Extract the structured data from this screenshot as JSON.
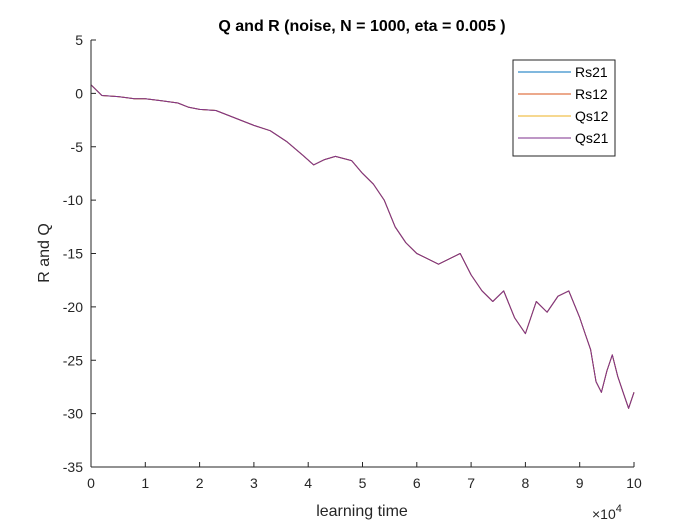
{
  "chart_data": {
    "type": "line",
    "title": "Q and R (noise, N = 1000, eta = 0.005 )",
    "xlabel": "learning time",
    "ylabel": "R and Q",
    "x_exponent_label": "×10",
    "x_exponent_power": "4",
    "xlim": [
      0,
      10
    ],
    "ylim": [
      -35,
      5
    ],
    "x_ticks": [
      0,
      1,
      2,
      3,
      4,
      5,
      6,
      7,
      8,
      9,
      10
    ],
    "x_tick_labels": [
      "0",
      "1",
      "2",
      "3",
      "4",
      "5",
      "6",
      "7",
      "8",
      "9",
      "10"
    ],
    "y_ticks": [
      5,
      0,
      -5,
      -10,
      -15,
      -20,
      -25,
      -30,
      -35
    ],
    "y_tick_labels": [
      "5",
      "0",
      "-5",
      "-10",
      "-15",
      "-20",
      "-25",
      "-30",
      "-35"
    ],
    "grid": false,
    "legend_position": "top-right",
    "x": [
      0,
      0.2,
      0.5,
      0.8,
      1.0,
      1.3,
      1.6,
      1.8,
      2.0,
      2.3,
      2.6,
      2.8,
      3.0,
      3.3,
      3.6,
      3.9,
      4.1,
      4.3,
      4.5,
      4.8,
      5.0,
      5.2,
      5.4,
      5.6,
      5.8,
      6.0,
      6.2,
      6.4,
      6.6,
      6.8,
      7.0,
      7.2,
      7.4,
      7.6,
      7.8,
      8.0,
      8.2,
      8.4,
      8.6,
      8.8,
      9.0,
      9.1,
      9.2,
      9.3,
      9.4,
      9.5,
      9.6,
      9.7,
      9.8,
      9.9,
      10.0
    ],
    "series": [
      {
        "name": "Rs21",
        "color": "#0072BD",
        "values": [
          0.8,
          -0.2,
          -0.3,
          -0.5,
          -0.5,
          -0.7,
          -0.9,
          -1.3,
          -1.5,
          -1.6,
          -2.2,
          -2.6,
          -3.0,
          -3.5,
          -4.5,
          -5.8,
          -6.7,
          -6.2,
          -5.9,
          -6.3,
          -7.5,
          -8.5,
          -10.0,
          -12.5,
          -14.0,
          -15.0,
          -15.5,
          -16.0,
          -15.5,
          -15.0,
          -17.0,
          -18.5,
          -19.5,
          -18.5,
          -21.0,
          -22.5,
          -19.5,
          -20.5,
          -19.0,
          -18.5,
          -21.0,
          -22.5,
          -24.0,
          -27.0,
          -28.0,
          -26.0,
          -24.5,
          -26.5,
          -28.0,
          -29.5,
          -28.0
        ]
      },
      {
        "name": "Rs12",
        "color": "#D95319",
        "values": [
          0.8,
          -0.2,
          -0.3,
          -0.5,
          -0.5,
          -0.7,
          -0.9,
          -1.3,
          -1.5,
          -1.6,
          -2.2,
          -2.6,
          -3.0,
          -3.5,
          -4.5,
          -5.8,
          -6.7,
          -6.2,
          -5.9,
          -6.3,
          -7.5,
          -8.5,
          -10.0,
          -12.5,
          -14.0,
          -15.0,
          -15.5,
          -16.0,
          -15.5,
          -15.0,
          -17.0,
          -18.5,
          -19.5,
          -18.5,
          -21.0,
          -22.5,
          -19.5,
          -20.5,
          -19.0,
          -18.5,
          -21.0,
          -22.5,
          -24.0,
          -27.0,
          -28.0,
          -26.0,
          -24.5,
          -26.5,
          -28.0,
          -29.5,
          -28.0
        ]
      },
      {
        "name": "Qs12",
        "color": "#EDB120",
        "values": [
          0.8,
          -0.2,
          -0.3,
          -0.5,
          -0.5,
          -0.7,
          -0.9,
          -1.3,
          -1.5,
          -1.6,
          -2.2,
          -2.6,
          -3.0,
          -3.5,
          -4.5,
          -5.8,
          -6.7,
          -6.2,
          -5.9,
          -6.3,
          -7.5,
          -8.5,
          -10.0,
          -12.5,
          -14.0,
          -15.0,
          -15.5,
          -16.0,
          -15.5,
          -15.0,
          -17.0,
          -18.5,
          -19.5,
          -18.5,
          -21.0,
          -22.5,
          -19.5,
          -20.5,
          -19.0,
          -18.5,
          -21.0,
          -22.5,
          -24.0,
          -27.0,
          -28.0,
          -26.0,
          -24.5,
          -26.5,
          -28.0,
          -29.5,
          -28.0
        ]
      },
      {
        "name": "Qs21",
        "color": "#7E2F8E",
        "values": [
          0.8,
          -0.2,
          -0.3,
          -0.5,
          -0.5,
          -0.7,
          -0.9,
          -1.3,
          -1.5,
          -1.6,
          -2.2,
          -2.6,
          -3.0,
          -3.5,
          -4.5,
          -5.8,
          -6.7,
          -6.2,
          -5.9,
          -6.3,
          -7.5,
          -8.5,
          -10.0,
          -12.5,
          -14.0,
          -15.0,
          -15.5,
          -16.0,
          -15.5,
          -15.0,
          -17.0,
          -18.5,
          -19.5,
          -18.5,
          -21.0,
          -22.5,
          -19.5,
          -20.5,
          -19.0,
          -18.5,
          -21.0,
          -22.5,
          -24.0,
          -27.0,
          -28.0,
          -26.0,
          -24.5,
          -26.5,
          -28.0,
          -29.5,
          -28.0
        ]
      }
    ]
  }
}
